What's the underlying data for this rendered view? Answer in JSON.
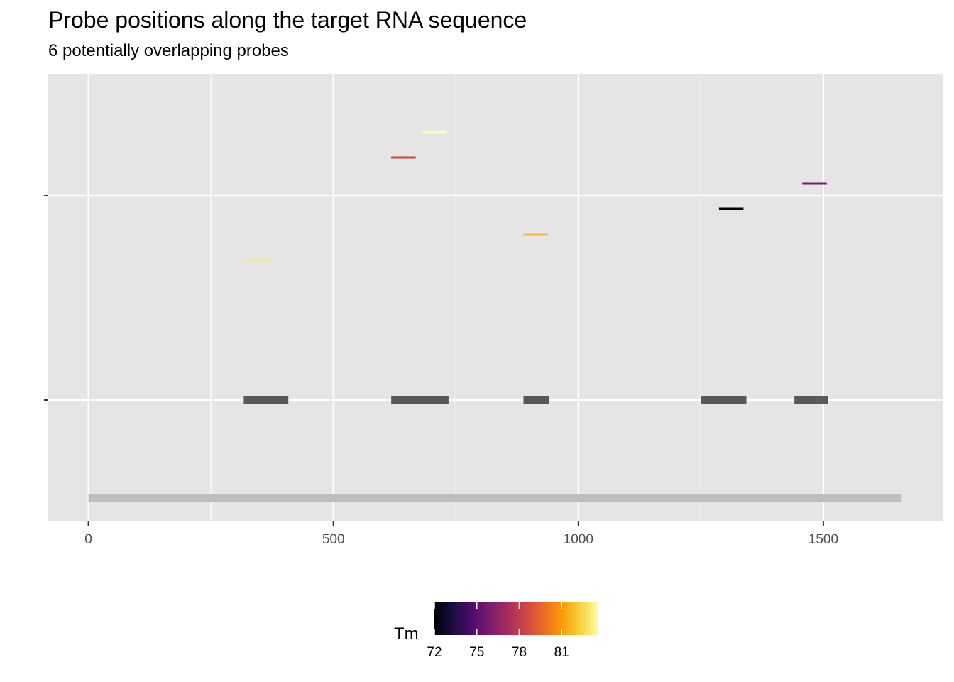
{
  "chart_data": {
    "type": "segment",
    "title": "Probe positions along the target RNA sequence",
    "subtitle": "6 potentially overlapping probes",
    "xlim": [
      -82,
      1745
    ],
    "x_ticks": [
      0,
      500,
      1000,
      1500
    ],
    "x_tick_labels": [
      "0",
      "500",
      "1000",
      "1500"
    ],
    "grid": true,
    "target_sequence": {
      "start": 0,
      "end": 1660,
      "color": "#BEBEBE"
    },
    "probes": [
      {
        "start": 317,
        "end": 370,
        "Tm": 82.0,
        "color": "#F6E97A"
      },
      {
        "start": 618,
        "end": 668,
        "Tm": 78.8,
        "color": "#D44132"
      },
      {
        "start": 682,
        "end": 732,
        "Tm": 83.0,
        "color": "#FCFFA4"
      },
      {
        "start": 888,
        "end": 938,
        "Tm": 80.6,
        "color": "#F6B63E"
      },
      {
        "start": 1287,
        "end": 1337,
        "Tm": 72.0,
        "color": "#000004"
      },
      {
        "start": 1457,
        "end": 1507,
        "Tm": 76.2,
        "color": "#701E6E"
      }
    ],
    "coverage": [
      {
        "start": 317,
        "end": 408
      },
      {
        "start": 618,
        "end": 735
      },
      {
        "start": 888,
        "end": 941
      },
      {
        "start": 1251,
        "end": 1343
      },
      {
        "start": 1441,
        "end": 1510
      }
    ],
    "coverage_color": "#595959",
    "legend": {
      "title": "Tm",
      "position": "bottom",
      "min": 72,
      "max": 83.6,
      "breaks": [
        72,
        75,
        78,
        81
      ],
      "break_labels": [
        "72",
        "75",
        "78",
        "81"
      ],
      "palette": [
        "#000004",
        "#1B0C41",
        "#4A0C6B",
        "#781C6D",
        "#A52C60",
        "#CF4446",
        "#ED6925",
        "#FB9B06",
        "#F7D13D",
        "#FCFFA4"
      ]
    },
    "panel_background": "#E5E5E5",
    "gridline_color": "#FFFFFF"
  }
}
